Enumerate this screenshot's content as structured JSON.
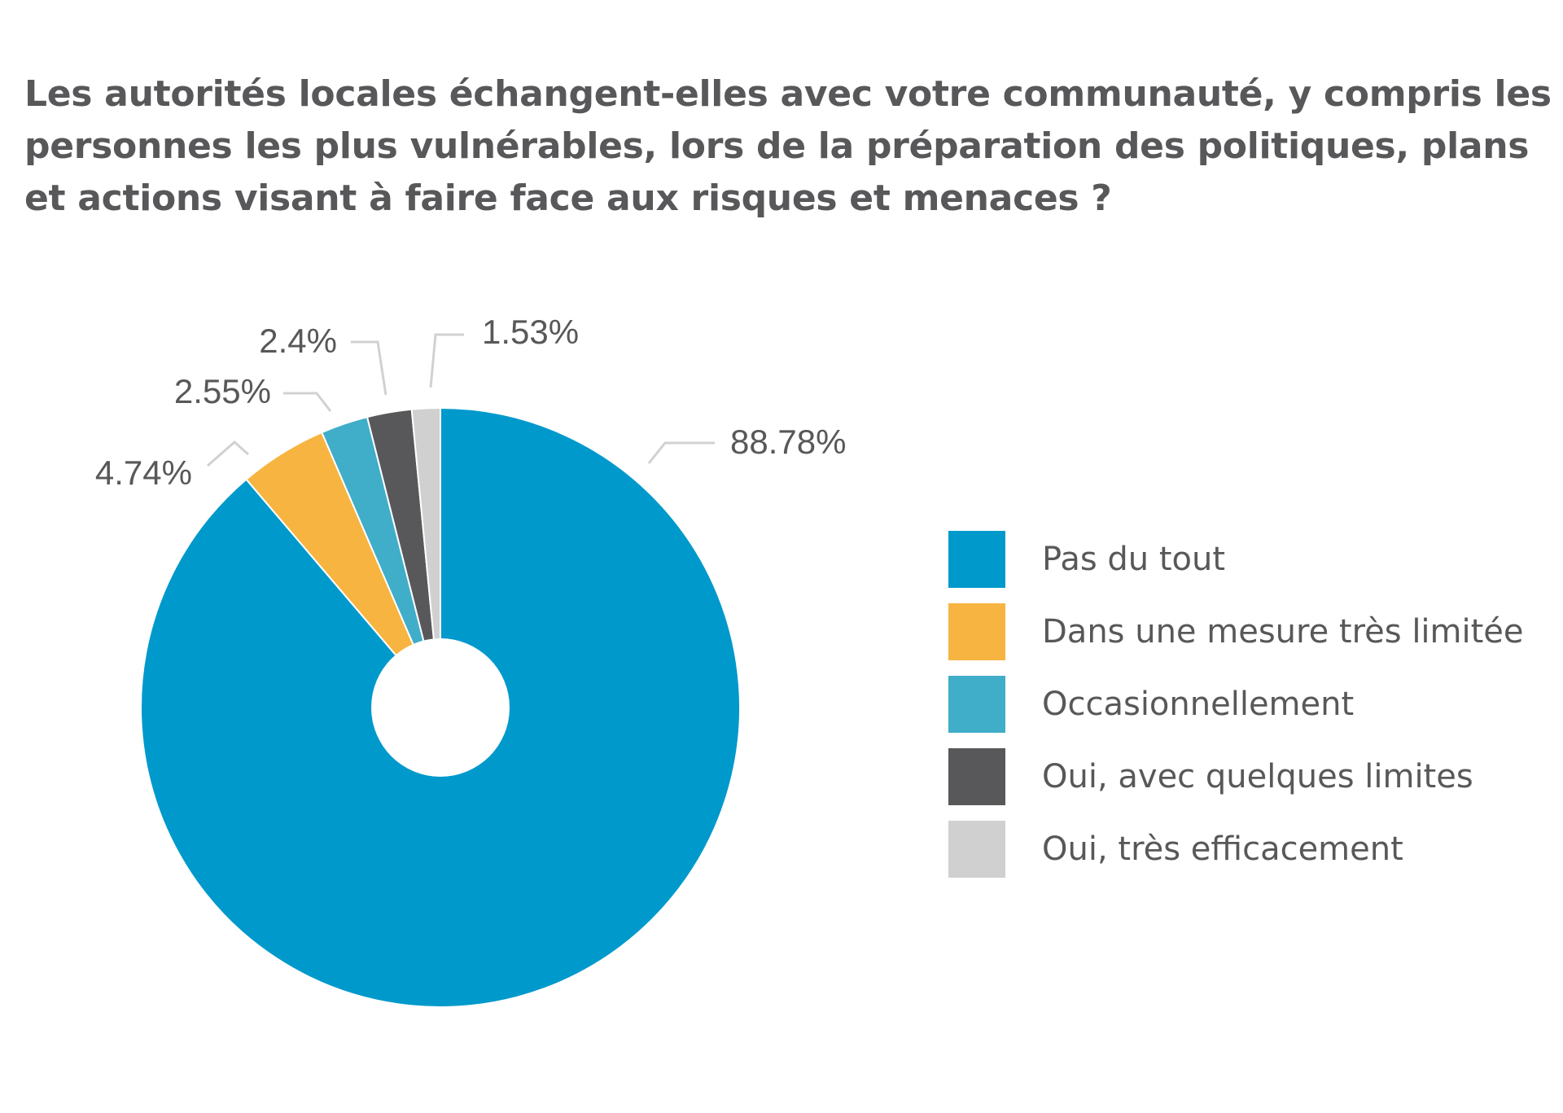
{
  "chart_data": {
    "type": "pie",
    "title": "Les autorités locales échangent-elles avec votre communauté, y compris les personnes les plus vulnérables, lors de la préparation des politiques, plans et actions visant à faire face aux risques et menaces ?",
    "hole": true,
    "legend_position": "right",
    "slices": [
      {
        "label": "Pas du tout",
        "value": 88.78,
        "value_label": "88.78%",
        "color": "#0099cc"
      },
      {
        "label": "Dans une mesure très limitée",
        "value": 4.74,
        "value_label": "4.74%",
        "color": "#f7b440"
      },
      {
        "label": "Occasionnellement",
        "value": 2.55,
        "value_label": "2.55%",
        "color": "#40adc9"
      },
      {
        "label": "Oui, avec quelques limites",
        "value": 2.4,
        "value_label": "2.4%",
        "color": "#58585a"
      },
      {
        "label": "Oui, très efficacement",
        "value": 1.53,
        "value_label": "1.53%",
        "color": "#d0d0d0"
      }
    ]
  }
}
